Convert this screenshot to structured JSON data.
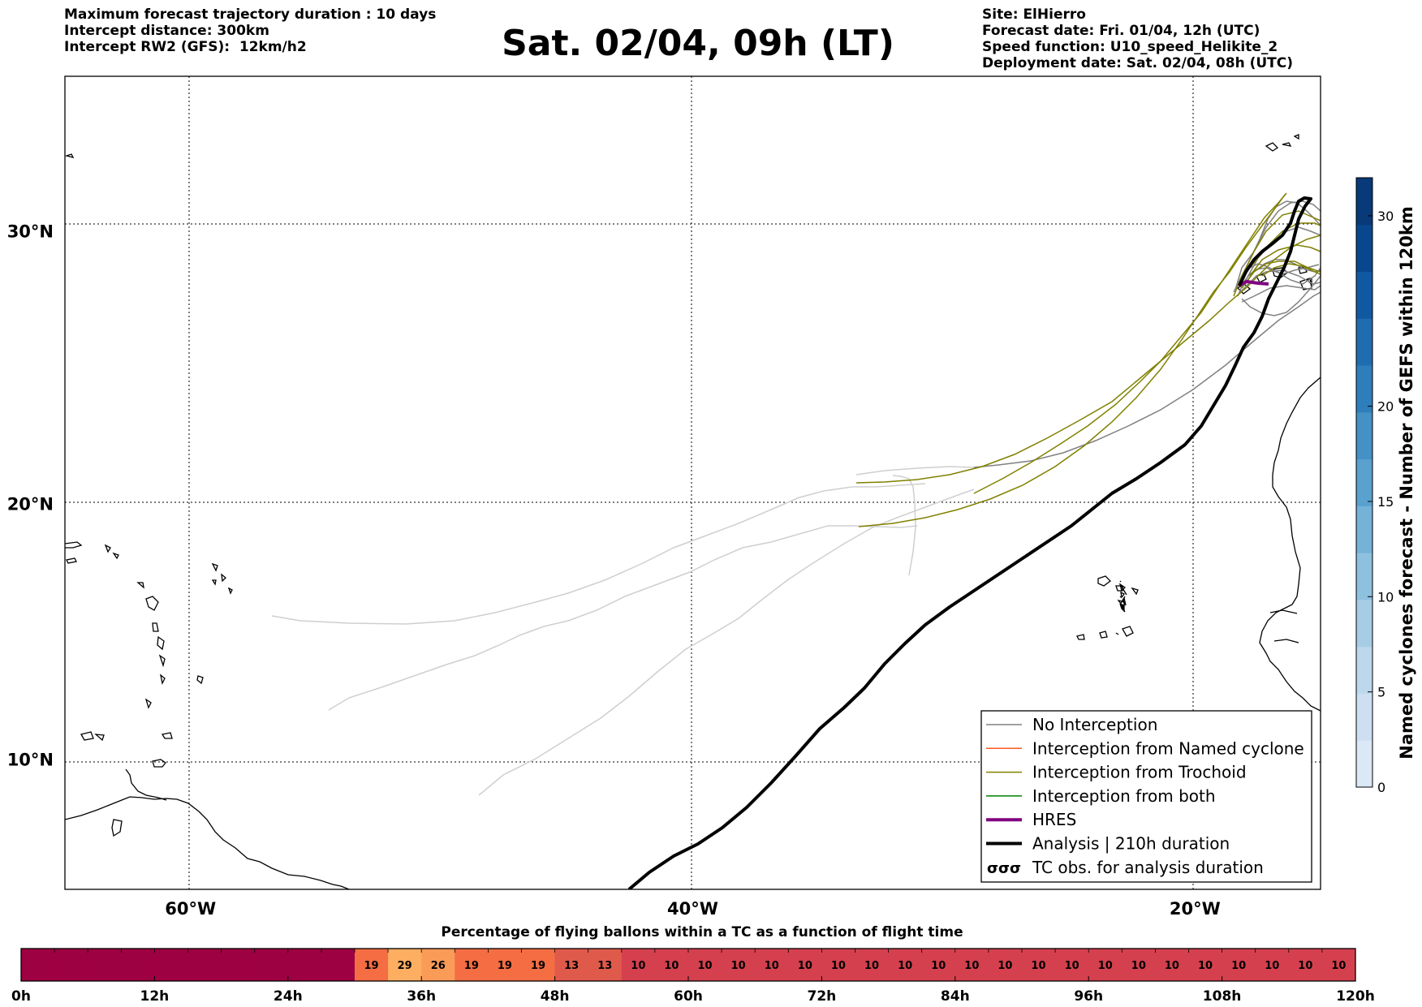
{
  "header": {
    "left_lines": [
      "Maximum forecast trajectory duration : 10 days",
      "Intercept distance: 300km",
      "Intercept RW2 (GFS):  12km/h2"
    ],
    "title": "Sat. 02/04, 09h (LT)",
    "right_lines": [
      "Site: ElHierro",
      "Forecast date: Fri. 01/04, 12h (UTC)",
      "Speed function: U10_speed_Helikite_2",
      "Deployment date: Sat. 02/04, 08h (UTC)"
    ]
  },
  "map": {
    "lat_labels": [
      {
        "text": "30°N",
        "lat": 30
      },
      {
        "text": "20°N",
        "lat": 20
      },
      {
        "text": "10°N",
        "lat": 10
      }
    ],
    "lon_labels": [
      {
        "text": "60°W",
        "lon": -60
      },
      {
        "text": "40°W",
        "lon": -40
      },
      {
        "text": "20°W",
        "lon": -20
      }
    ],
    "extent": {
      "lon_min": -65,
      "lon_max": -15,
      "lat_min": 4.8,
      "lat_max": 35.3
    },
    "colors": {
      "no_interception": "#808080",
      "named_cyclone": "#ff5a1e",
      "trochoid": "#808000",
      "both": "#008000",
      "hres": "#800080",
      "analysis": "#000000",
      "faded": "#cfcfcf"
    }
  },
  "legend": {
    "items": [
      {
        "label": "No Interception",
        "color": "#808080",
        "width": 1.5,
        "symbol": "line"
      },
      {
        "label": "Interception from Named cyclone",
        "color": "#ff5a1e",
        "width": 1.5,
        "symbol": "line"
      },
      {
        "label": "Interception from Trochoid",
        "color": "#808000",
        "width": 1.5,
        "symbol": "line"
      },
      {
        "label": "Interception from both",
        "color": "#008000",
        "width": 1.5,
        "symbol": "line"
      },
      {
        "label": "HRES",
        "color": "#800080",
        "width": 4,
        "symbol": "line"
      },
      {
        "label": "Analysis | 210h duration",
        "color": "#000000",
        "width": 4,
        "symbol": "line"
      },
      {
        "label": "TC obs. for analysis duration",
        "color": "#000000",
        "width": 2,
        "symbol": "tc"
      }
    ]
  },
  "colorbar": {
    "label": "Named cyclones forecast - Number of GEFS within 120km",
    "ticks": [
      0,
      5,
      10,
      15,
      20,
      30
    ],
    "min": 0,
    "max": 32,
    "colors": [
      "#dbe8f6",
      "#cddff1",
      "#bdd7ec",
      "#a7cde6",
      "#8ec1df",
      "#74b2d8",
      "#5aa1cf",
      "#4391c5",
      "#2e7ebc",
      "#1f6cb0",
      "#1059a2",
      "#08478d",
      "#083978"
    ]
  },
  "timeline": {
    "title": "Percentage of flying ballons within a TC as a function of flight time",
    "tick_labels": [
      "0h",
      "12h",
      "24h",
      "36h",
      "48h",
      "60h",
      "72h",
      "84h",
      "96h",
      "108h",
      "120h"
    ],
    "cells": [
      null,
      null,
      null,
      null,
      null,
      null,
      null,
      null,
      null,
      null,
      19,
      29,
      26,
      19,
      19,
      19,
      13,
      13,
      10,
      10,
      10,
      10,
      10,
      10,
      10,
      10,
      10,
      10,
      10,
      10,
      10,
      10,
      10,
      10,
      10,
      10,
      10,
      10,
      10,
      10
    ],
    "color_null": "#9e0142",
    "colors": {
      "10": "#d5404e",
      "13": "#e05a4b",
      "19": "#f46d43",
      "26": "#fa9b58",
      "29": "#fdae61"
    }
  }
}
